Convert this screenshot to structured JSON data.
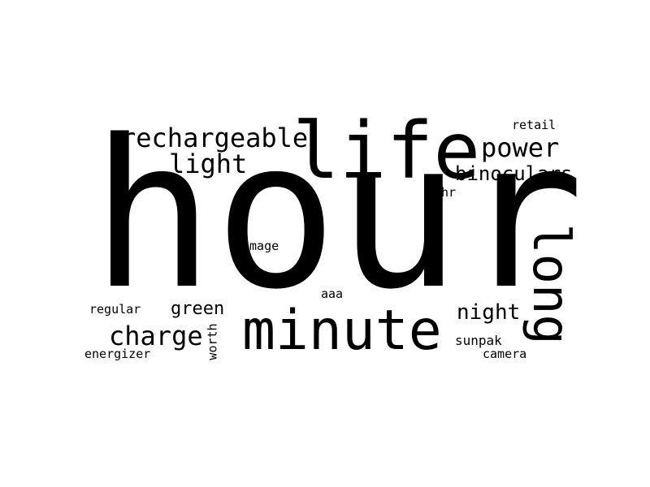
{
  "wordcloud": {
    "background": "#ffffff",
    "word_color": "#000000",
    "words": {
      "hour": "hour",
      "life": "life",
      "minute": "minute",
      "long": "long",
      "rechargeable": "rechargeable",
      "power": "power",
      "light": "light",
      "binoculars": "binoculars",
      "charge": "charge",
      "night": "night",
      "green": "green",
      "retail": "retail",
      "hr": "hr",
      "image": "image",
      "aaa": "aaa",
      "regular": "regular",
      "worth": "worth",
      "energizer": "energizer",
      "sunpak": "sunpak",
      "camera": "camera"
    }
  }
}
